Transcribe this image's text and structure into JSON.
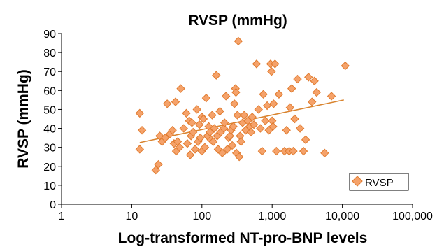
{
  "chart_data": {
    "type": "scatter",
    "title": "RVSP (mmHg)",
    "xlabel": "Log-transformed NT-pro-BNP levels",
    "ylabel": "RVSP (mmHg)",
    "x_scale": "log",
    "xlim": [
      1,
      100000
    ],
    "ylim": [
      0,
      90
    ],
    "x_ticks": [
      1,
      10,
      100,
      1000,
      10000,
      100000
    ],
    "x_tick_labels": [
      "1",
      "10",
      "100",
      "1,000",
      "10,000",
      "100,000"
    ],
    "y_ticks": [
      0,
      10,
      20,
      30,
      40,
      50,
      60,
      70,
      80,
      90
    ],
    "y_tick_labels": [
      "0",
      "10",
      "20",
      "30",
      "40",
      "50",
      "60",
      "70",
      "80",
      "90"
    ],
    "grid": false,
    "legend_position": "bottom-right",
    "series_color": "#f5a26a",
    "series_edge_color": "#e07b2f",
    "trendline_color": "#d9842f",
    "series": [
      {
        "name": "RVSP",
        "marker": "diamond",
        "points": [
          [
            13,
            29
          ],
          [
            13,
            48
          ],
          [
            14,
            39
          ],
          [
            22,
            18
          ],
          [
            24,
            21
          ],
          [
            25,
            36
          ],
          [
            27,
            33
          ],
          [
            30,
            35
          ],
          [
            32,
            53
          ],
          [
            35,
            37
          ],
          [
            38,
            39
          ],
          [
            40,
            32
          ],
          [
            42,
            54
          ],
          [
            43,
            28
          ],
          [
            45,
            33
          ],
          [
            48,
            30
          ],
          [
            50,
            61
          ],
          [
            55,
            40
          ],
          [
            60,
            48
          ],
          [
            62,
            32
          ],
          [
            66,
            44
          ],
          [
            68,
            26
          ],
          [
            70,
            36
          ],
          [
            72,
            43
          ],
          [
            75,
            38
          ],
          [
            80,
            29
          ],
          [
            85,
            50
          ],
          [
            88,
            33
          ],
          [
            92,
            42
          ],
          [
            95,
            35
          ],
          [
            100,
            46
          ],
          [
            100,
            28
          ],
          [
            105,
            45
          ],
          [
            110,
            30
          ],
          [
            115,
            56
          ],
          [
            120,
            36
          ],
          [
            125,
            41
          ],
          [
            130,
            38
          ],
          [
            135,
            34
          ],
          [
            140,
            47
          ],
          [
            145,
            33
          ],
          [
            150,
            40
          ],
          [
            160,
            68
          ],
          [
            165,
            36
          ],
          [
            170,
            29
          ],
          [
            180,
            49
          ],
          [
            185,
            38
          ],
          [
            195,
            27
          ],
          [
            205,
            40
          ],
          [
            210,
            43
          ],
          [
            220,
            57
          ],
          [
            230,
            29
          ],
          [
            240,
            35
          ],
          [
            250,
            36
          ],
          [
            260,
            39
          ],
          [
            270,
            31
          ],
          [
            280,
            41
          ],
          [
            290,
            53
          ],
          [
            300,
            61
          ],
          [
            305,
            59
          ],
          [
            310,
            27
          ],
          [
            320,
            47
          ],
          [
            330,
            86
          ],
          [
            340,
            25
          ],
          [
            350,
            36
          ],
          [
            360,
            33
          ],
          [
            380,
            43
          ],
          [
            400,
            47
          ],
          [
            420,
            39
          ],
          [
            450,
            44
          ],
          [
            480,
            41
          ],
          [
            500,
            38
          ],
          [
            520,
            46
          ],
          [
            550,
            42
          ],
          [
            600,
            74
          ],
          [
            640,
            50
          ],
          [
            680,
            40
          ],
          [
            720,
            28
          ],
          [
            750,
            58
          ],
          [
            800,
            44
          ],
          [
            850,
            52
          ],
          [
            900,
            39
          ],
          [
            950,
            74
          ],
          [
            980,
            70
          ],
          [
            1000,
            44
          ],
          [
            1030,
            41
          ],
          [
            1050,
            53
          ],
          [
            1100,
            74
          ],
          [
            1150,
            28
          ],
          [
            1250,
            58
          ],
          [
            1500,
            28
          ],
          [
            1600,
            39
          ],
          [
            1750,
            28
          ],
          [
            1800,
            51
          ],
          [
            1900,
            61
          ],
          [
            2000,
            28
          ],
          [
            2100,
            45
          ],
          [
            2300,
            66
          ],
          [
            2500,
            40
          ],
          [
            2800,
            28
          ],
          [
            3000,
            34
          ],
          [
            3300,
            67
          ],
          [
            3700,
            54
          ],
          [
            4000,
            65
          ],
          [
            4300,
            59
          ],
          [
            5600,
            27
          ],
          [
            7000,
            57
          ],
          [
            11000,
            73
          ]
        ]
      }
    ],
    "trendline": {
      "type": "linear-in-log-x",
      "points": [
        [
          13,
          32.5
        ],
        [
          10500,
          55
        ]
      ]
    }
  }
}
